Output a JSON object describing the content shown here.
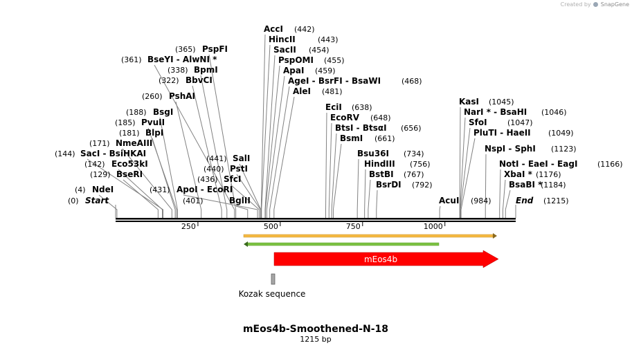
{
  "credit": {
    "prefix": "Created by",
    "brand": "SnapGene"
  },
  "title": "mEos4b-Smoothened-N-18",
  "length_text": "1215 bp",
  "ticks": [
    "250",
    "500",
    "750",
    "1000"
  ],
  "sites": [
    {
      "pos": "(0)",
      "names": "Start",
      "italic": true
    },
    {
      "pos": "(4)",
      "names": "NdeI"
    },
    {
      "pos": "(129)",
      "names": "BseRI"
    },
    {
      "pos": "(142)",
      "names": "Eco53kI"
    },
    {
      "pos": "(144)",
      "names": "SacI  -  BsiHKAI"
    },
    {
      "pos": "(171)",
      "names": "NmeAIII"
    },
    {
      "pos": "(181)",
      "names": "BlpI"
    },
    {
      "pos": "(185)",
      "names": "PvuII"
    },
    {
      "pos": "(188)",
      "names": "BsgI"
    },
    {
      "pos": "(260)",
      "names": "PshAI"
    },
    {
      "pos": "(322)",
      "names": "BbvCI"
    },
    {
      "pos": "(338)",
      "names": "BpmI"
    },
    {
      "pos": "(361)",
      "names": "BseYI  -  AlwNI *"
    },
    {
      "pos": "(365)",
      "names": "PspFI"
    },
    {
      "pos": "(401)",
      "names": "BglII"
    },
    {
      "pos": "(431)",
      "names": "ApoI  -  EcoRI"
    },
    {
      "pos": "(436)",
      "names": "SfcI"
    },
    {
      "pos": "(440)",
      "names": "PstI"
    },
    {
      "pos": "(441)",
      "names": "SalI"
    },
    {
      "pos": "(442)",
      "names": "AccI"
    },
    {
      "pos": "(443)",
      "names": "HincII"
    },
    {
      "pos": "(454)",
      "names": "SacII"
    },
    {
      "pos": "(455)",
      "names": "PspOMI"
    },
    {
      "pos": "(459)",
      "names": "ApaI"
    },
    {
      "pos": "(468)",
      "names": "AgeI  -  BsrFI  -  BsaWI"
    },
    {
      "pos": "(481)",
      "names": "AleI"
    },
    {
      "pos": "(638)",
      "names": "EciI"
    },
    {
      "pos": "(648)",
      "names": "EcoRV"
    },
    {
      "pos": "(656)",
      "names": "BtsI  -  BtsαI"
    },
    {
      "pos": "(661)",
      "names": "BsmI"
    },
    {
      "pos": "(734)",
      "names": "Bsu36I"
    },
    {
      "pos": "(756)",
      "names": "HindIII"
    },
    {
      "pos": "(767)",
      "names": "BstBI"
    },
    {
      "pos": "(792)",
      "names": "BsrDI"
    },
    {
      "pos": "(984)",
      "names": "AcuI"
    },
    {
      "pos": "(1045)",
      "names": "KasI"
    },
    {
      "pos": "(1046)",
      "names": "NarI *  -  BsaHI"
    },
    {
      "pos": "(1047)",
      "names": "SfoI"
    },
    {
      "pos": "(1049)",
      "names": "PluTI  -  HaeII"
    },
    {
      "pos": "(1123)",
      "names": "NspI  -  SphI"
    },
    {
      "pos": "(1166)",
      "names": "NotI  -  EaeI  -  EagI"
    },
    {
      "pos": "(1176)",
      "names": "XbaI *"
    },
    {
      "pos": "(1184)",
      "names": "BsaBI *"
    },
    {
      "pos": "(1215)",
      "names": "End",
      "italic": true
    }
  ],
  "features": {
    "mEos4b": {
      "label": "mEos4b",
      "color": "#ff0000"
    },
    "kozak": {
      "label": "Kozak sequence",
      "color": "#a6a6a6"
    },
    "orf_forward": {
      "color": "#f5b942"
    },
    "orf_reverse": {
      "color": "#7cc242"
    }
  }
}
